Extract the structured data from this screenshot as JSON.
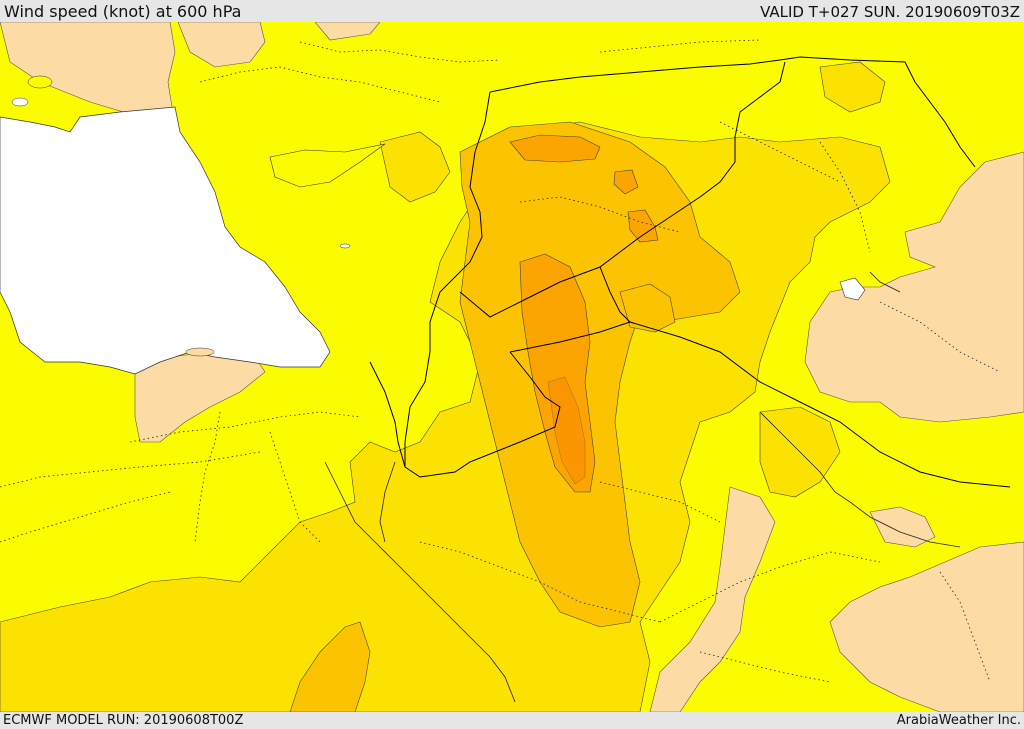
{
  "header": {
    "title": "Wind speed (knot) at 600 hPa",
    "valid": "VALID T+027 SUN. 20190609T03Z"
  },
  "footer": {
    "model_run": "ECMWF MODEL RUN: 20190608T00Z",
    "credit": "ArabiaWeather Inc."
  },
  "map": {
    "colors": {
      "band_low": "#fcdca4",
      "band_1": "#fcfc00",
      "band_2": "#fce200",
      "band_3": "#fcc400",
      "band_4": "#fca400",
      "band_5": "#fc8c00",
      "water": "#ffffff",
      "border": "#000000"
    }
  }
}
